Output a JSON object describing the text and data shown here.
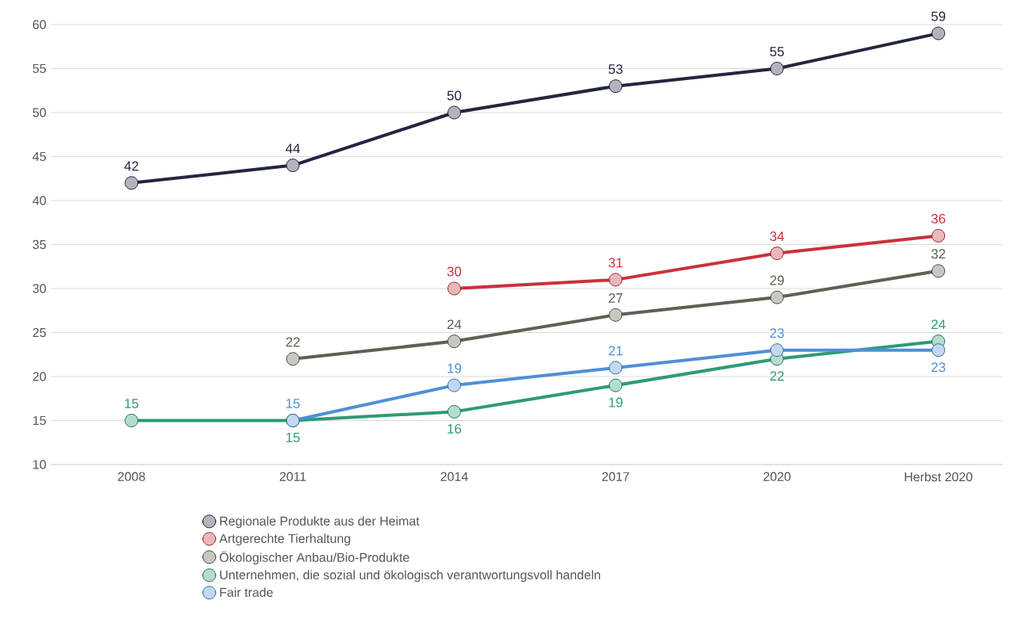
{
  "chart_data": {
    "type": "line",
    "categories": [
      "2008",
      "2011",
      "2014",
      "2017",
      "2020",
      "Herbst 2020"
    ],
    "ylim": [
      10,
      60
    ],
    "yticks": [
      10,
      15,
      20,
      25,
      30,
      35,
      40,
      45,
      50,
      55,
      60
    ],
    "grid": "y",
    "legend": "bottom",
    "marker": "circle",
    "line_style": "solid",
    "data_labels": true,
    "series": [
      {
        "name": "Regionale Produkte aus der Heimat",
        "color": "#23263f",
        "values": [
          42,
          44,
          50,
          53,
          55,
          59
        ]
      },
      {
        "name": "Artgerechte Tierhaltung",
        "color": "#c8323a",
        "values": [
          null,
          null,
          30,
          31,
          34,
          36
        ]
      },
      {
        "name": "Ökologischer Anbau/Bio-Produkte",
        "color": "#5f5f55",
        "values": [
          null,
          22,
          24,
          27,
          29,
          32
        ]
      },
      {
        "name": "Unternehmen, die sozial und ökologisch verantwortungsvoll handeln",
        "color": "#2e9a78",
        "values": [
          15,
          15,
          16,
          19,
          22,
          24
        ]
      },
      {
        "name": "Fair trade",
        "color": "#4f8fd8",
        "values": [
          null,
          15,
          19,
          21,
          23,
          23
        ]
      }
    ]
  }
}
